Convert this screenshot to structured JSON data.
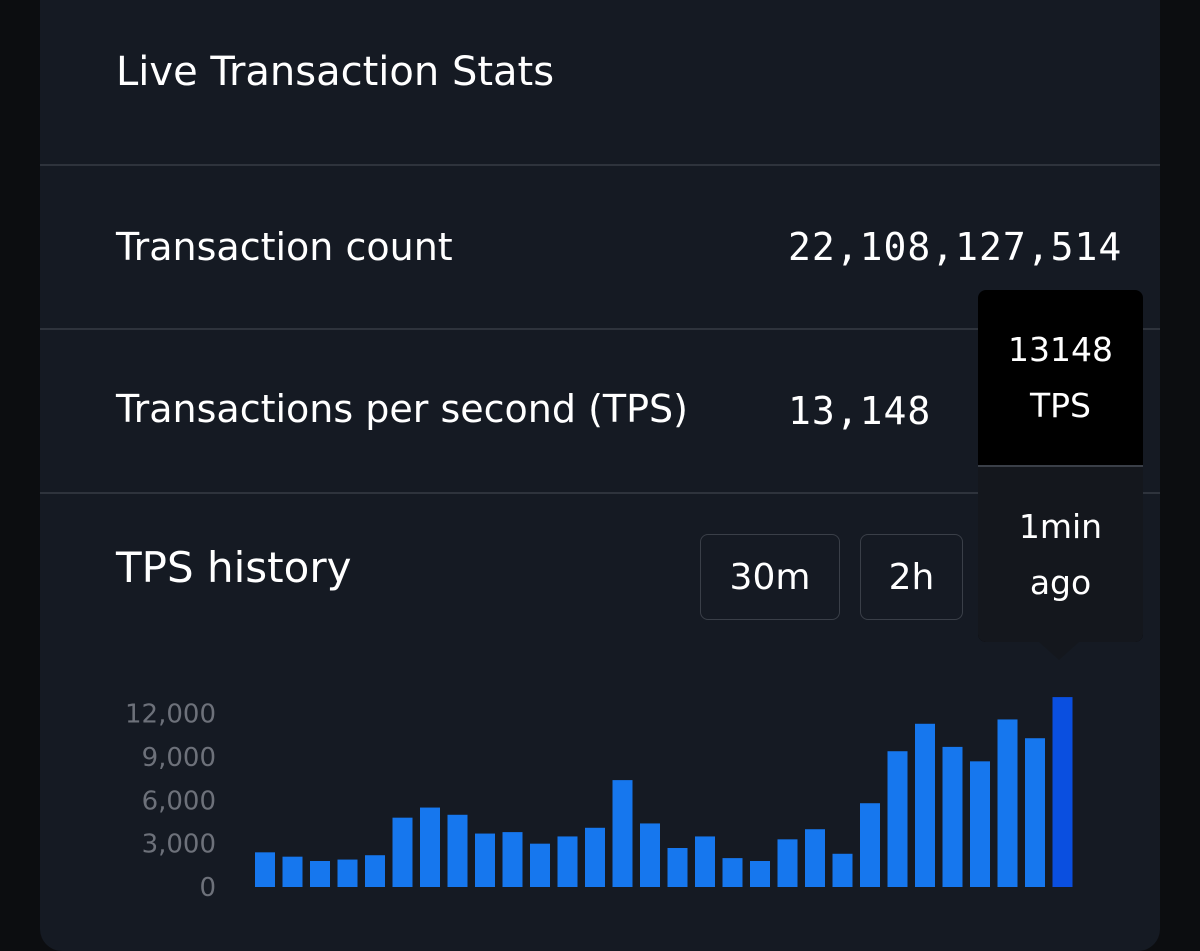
{
  "title": "Live Transaction Stats",
  "stats": {
    "transaction_count": {
      "label": "Transaction count",
      "value": "22,108,127,514"
    },
    "tps": {
      "label": "Transactions per second (TPS)",
      "value": "13,148"
    }
  },
  "history": {
    "title": "TPS history",
    "ranges": [
      "30m",
      "2h"
    ]
  },
  "tooltip": {
    "value": "13148",
    "unit": "TPS",
    "time_line1": "1min",
    "time_line2": "ago"
  },
  "colors": {
    "bar": "#1677ee",
    "bar_highlight": "#0a4fe0"
  },
  "chart_data": {
    "type": "bar",
    "ylim": [
      0,
      13500
    ],
    "yticks": [
      0,
      3000,
      6000,
      9000,
      12000
    ],
    "ytick_labels": [
      "0",
      "3,000",
      "6,000",
      "9,000",
      "12,000"
    ],
    "highlight_index": 29,
    "values": [
      2400,
      2100,
      1800,
      1900,
      2200,
      4800,
      5500,
      5000,
      3700,
      3800,
      3000,
      3500,
      4100,
      7400,
      4400,
      2700,
      3500,
      2000,
      1800,
      3300,
      4000,
      2300,
      5800,
      9400,
      11300,
      9700,
      8700,
      11600,
      10300,
      13148
    ]
  }
}
